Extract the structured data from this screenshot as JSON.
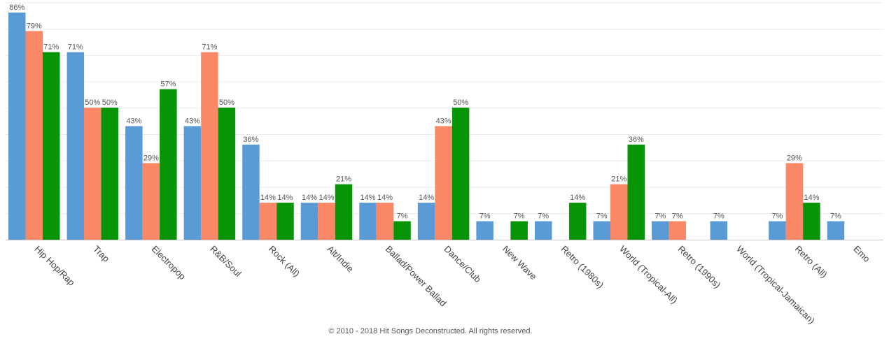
{
  "chart_data": {
    "type": "bar",
    "categories": [
      "Hip Hop/Rap",
      "Trap",
      "Electropop",
      "R&B/Soul",
      "Rock (All)",
      "Alt/Indie",
      "Ballad/Power Ballad",
      "Dance/Club",
      "New Wave",
      "Retro (1980s)",
      "World (Tropical-All)",
      "Retro (1990s)",
      "World (Tropical-Jamaican)",
      "Retro (All)",
      "Emo"
    ],
    "series": [
      {
        "color": "#5b9bd5",
        "values": [
          86,
          71,
          43,
          43,
          36,
          14,
          14,
          14,
          7,
          7,
          7,
          7,
          7,
          7,
          7
        ]
      },
      {
        "color": "#fa8866",
        "values": [
          79,
          50,
          29,
          71,
          14,
          14,
          14,
          43,
          null,
          null,
          21,
          7,
          null,
          29,
          null
        ]
      },
      {
        "color": "#079407",
        "values": [
          71,
          50,
          57,
          50,
          14,
          21,
          7,
          50,
          7,
          14,
          36,
          null,
          null,
          14,
          null
        ]
      }
    ],
    "value_suffix": "%",
    "ylim": [
      0,
      86
    ],
    "grid": true,
    "legend": "none"
  },
  "footer": "© 2010 - 2018 Hit Songs Deconstructed. All rights reserved."
}
